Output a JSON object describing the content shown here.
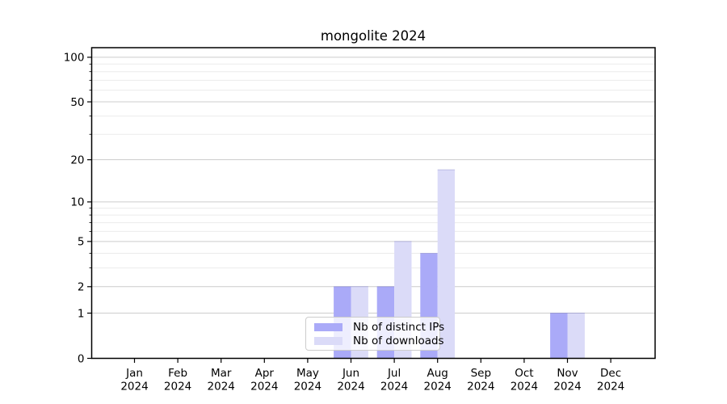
{
  "chart_data": {
    "type": "bar",
    "title": "mongolite 2024",
    "categories": [
      "Jan 2024",
      "Feb 2024",
      "Mar 2024",
      "Apr 2024",
      "May 2024",
      "Jun 2024",
      "Jul 2024",
      "Aug 2024",
      "Sep 2024",
      "Oct 2024",
      "Nov 2024",
      "Dec 2024"
    ],
    "series": [
      {
        "name": "Nb of distinct IPs",
        "color": "#aaaaf8",
        "values": [
          0,
          0,
          0,
          0,
          0,
          2,
          2,
          4,
          0,
          0,
          1,
          0
        ]
      },
      {
        "name": "Nb of downloads",
        "color": "#dbdbf8",
        "values": [
          0,
          0,
          0,
          0,
          0,
          2,
          5,
          17,
          0,
          0,
          1,
          0
        ]
      }
    ],
    "xlabel": "",
    "ylabel": "",
    "yscale": "log10(value+1)",
    "yticks_major": [
      0,
      1,
      2,
      5,
      10,
      20,
      50,
      100
    ],
    "yticks_minor": [
      3,
      4,
      6,
      7,
      8,
      9,
      30,
      40,
      60,
      70,
      80,
      90
    ],
    "ylim": [
      0,
      116
    ],
    "grid": "horizontal",
    "legend_position": "bottom-center",
    "colors": {
      "grid_major": "#cccccc",
      "grid_minor": "#ebebeb",
      "spine": "#000000",
      "tick": "#000000",
      "text": "#000000",
      "background": "#ffffff"
    }
  }
}
